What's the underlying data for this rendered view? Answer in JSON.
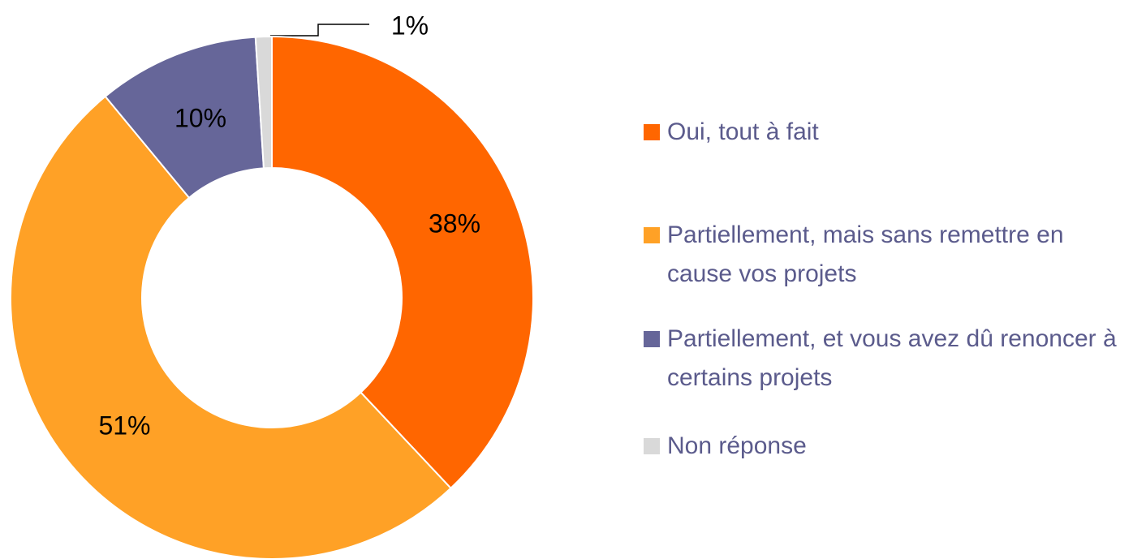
{
  "chart_data": {
    "type": "pie",
    "categories": [
      "Oui, tout à fait",
      "Partiellement, mais sans remettre en cause vos projets",
      "Partiellement, et vous avez dû renoncer à certains projets",
      "Non réponse"
    ],
    "values": [
      38,
      51,
      10,
      1
    ],
    "value_labels": [
      "38%",
      "51%",
      "10%",
      "1%"
    ],
    "colors": [
      "#ff6600",
      "#ffa126",
      "#666699",
      "#d9d9d9"
    ]
  }
}
